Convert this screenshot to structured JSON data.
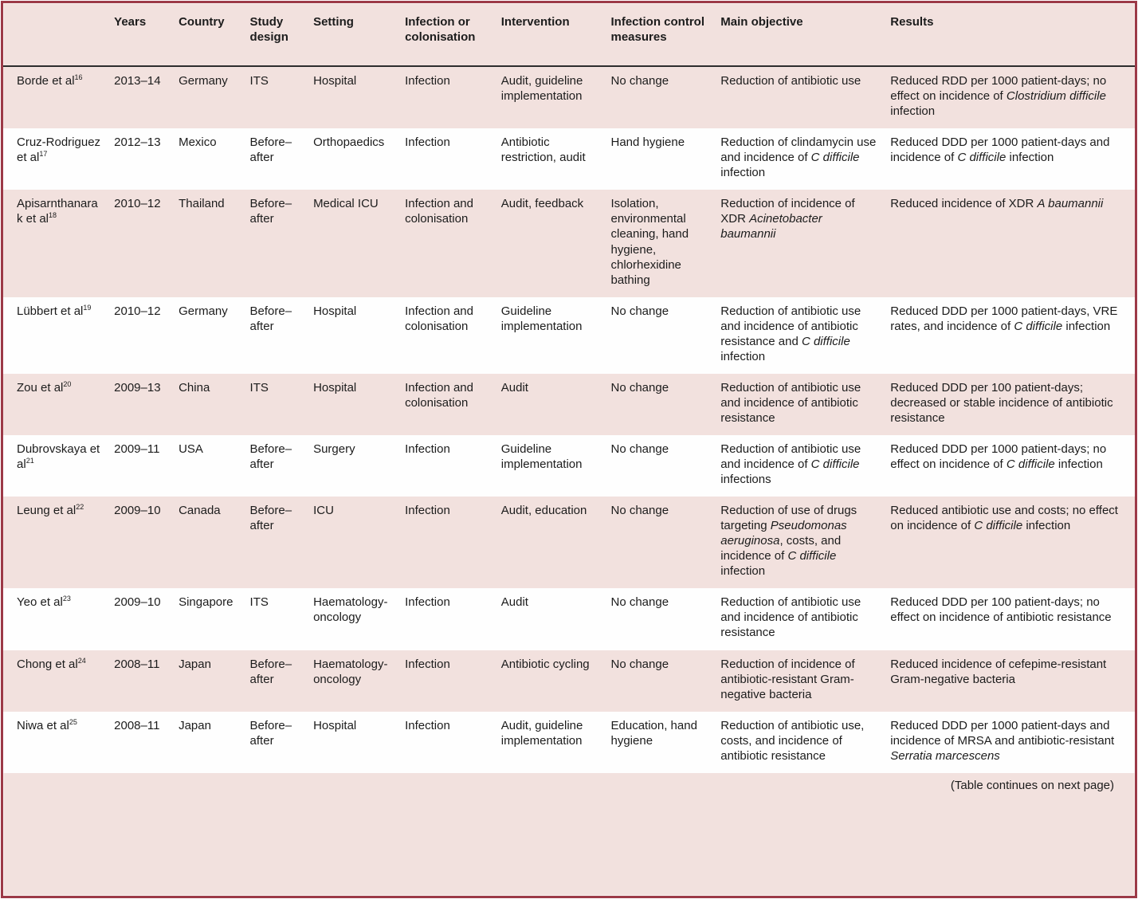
{
  "colors": {
    "pink_background": "#f2e1de",
    "maroon_border": "#9c3947",
    "header_rule": "#2d2d2d",
    "text": "#1c1c1c",
    "white_row": "#fefefe"
  },
  "table": {
    "headers": [
      "",
      "Years",
      "Country",
      "Study design",
      "Setting",
      "Infection or colonisation",
      "Intervention",
      "Infection control measures",
      "Main objective",
      "Results"
    ],
    "column_keys": [
      "study",
      "years",
      "country",
      "design",
      "setting",
      "infection",
      "intervention",
      "control",
      "objective",
      "results"
    ],
    "footer_note": "(Table continues on next page)",
    "rows": [
      {
        "shade": "pink",
        "cells": {
          "study": [
            {
              "t": "Borde et al"
            },
            {
              "t": "16",
              "sup": true
            }
          ],
          "years": "2013–14",
          "country": "Germany",
          "design": "ITS",
          "setting": "Hospital",
          "infection": "Infection",
          "intervention": "Audit, guideline implementation",
          "control": "No change",
          "objective": "Reduction of antibiotic use",
          "results": [
            {
              "t": "Reduced RDD per 1000 patient-days; no effect on incidence of "
            },
            {
              "t": "Clostridium difficile",
              "i": true
            },
            {
              "t": " infection"
            }
          ]
        }
      },
      {
        "shade": "white",
        "cells": {
          "study": [
            {
              "t": "Cruz-Rodriguez et al"
            },
            {
              "t": "17",
              "sup": true
            }
          ],
          "years": "2012–13",
          "country": "Mexico",
          "design": "Before–after",
          "setting": "Orthopaedics",
          "infection": "Infection",
          "intervention": "Antibiotic restriction, audit",
          "control": "Hand hygiene",
          "objective": [
            {
              "t": "Reduction of clindamycin use and incidence of "
            },
            {
              "t": "C difficile",
              "i": true
            },
            {
              "t": " infection"
            }
          ],
          "results": [
            {
              "t": "Reduced DDD per 1000 patient-days and incidence of "
            },
            {
              "t": "C difficile",
              "i": true
            },
            {
              "t": " infection"
            }
          ]
        }
      },
      {
        "shade": "pink",
        "cells": {
          "study": [
            {
              "t": "Apisarnthanarak et al"
            },
            {
              "t": "18",
              "sup": true
            }
          ],
          "years": "2010–12",
          "country": "Thailand",
          "design": "Before–after",
          "setting": "Medical ICU",
          "infection": "Infection and colonisation",
          "intervention": "Audit, feedback",
          "control": "Isolation, environmental cleaning, hand hygiene, chlorhexidine bathing",
          "objective": [
            {
              "t": "Reduction of incidence of XDR "
            },
            {
              "t": "Acinetobacter baumannii",
              "i": true
            }
          ],
          "results": [
            {
              "t": "Reduced incidence of XDR "
            },
            {
              "t": "A baumannii",
              "i": true
            }
          ]
        }
      },
      {
        "shade": "white",
        "cells": {
          "study": [
            {
              "t": "Lübbert et al"
            },
            {
              "t": "19",
              "sup": true
            }
          ],
          "years": "2010–12",
          "country": "Germany",
          "design": "Before–after",
          "setting": "Hospital",
          "infection": "Infection and colonisation",
          "intervention": "Guideline implementation",
          "control": "No change",
          "objective": [
            {
              "t": "Reduction of antibiotic use and incidence of antibiotic resistance and "
            },
            {
              "t": "C difficile",
              "i": true
            },
            {
              "t": " infection"
            }
          ],
          "results": [
            {
              "t": "Reduced DDD per 1000 patient-days, VRE rates, and incidence of "
            },
            {
              "t": "C difficile",
              "i": true
            },
            {
              "t": " infection"
            }
          ]
        }
      },
      {
        "shade": "pink",
        "cells": {
          "study": [
            {
              "t": "Zou et al"
            },
            {
              "t": "20",
              "sup": true
            }
          ],
          "years": "2009–13",
          "country": "China",
          "design": "ITS",
          "setting": "Hospital",
          "infection": "Infection and colonisation",
          "intervention": "Audit",
          "control": "No change",
          "objective": "Reduction of antibiotic use and incidence of antibiotic resistance",
          "results": "Reduced DDD per 100 patient-days; decreased or stable incidence of antibiotic resistance"
        }
      },
      {
        "shade": "white",
        "cells": {
          "study": [
            {
              "t": "Dubrovskaya et al"
            },
            {
              "t": "21",
              "sup": true
            }
          ],
          "years": "2009–11",
          "country": "USA",
          "design": "Before–after",
          "setting": "Surgery",
          "infection": "Infection",
          "intervention": "Guideline implementation",
          "control": "No change",
          "objective": [
            {
              "t": "Reduction of antibiotic use and incidence of "
            },
            {
              "t": "C difficile",
              "i": true
            },
            {
              "t": " infections"
            }
          ],
          "results": [
            {
              "t": "Reduced DDD per 1000 patient-days; no effect on incidence of "
            },
            {
              "t": "C difficile",
              "i": true
            },
            {
              "t": " infection"
            }
          ]
        }
      },
      {
        "shade": "pink",
        "cells": {
          "study": [
            {
              "t": "Leung et al"
            },
            {
              "t": "22",
              "sup": true
            }
          ],
          "years": "2009–10",
          "country": "Canada",
          "design": "Before–after",
          "setting": "ICU",
          "infection": "Infection",
          "intervention": "Audit, education",
          "control": "No change",
          "objective": [
            {
              "t": "Reduction of use of drugs targeting "
            },
            {
              "t": "Pseudomonas aeruginosa",
              "i": true
            },
            {
              "t": ", costs, and incidence of "
            },
            {
              "t": "C difficile",
              "i": true
            },
            {
              "t": " infection"
            }
          ],
          "results": [
            {
              "t": "Reduced antibiotic use and costs; no effect on incidence of "
            },
            {
              "t": "C difficile",
              "i": true
            },
            {
              "t": " infection"
            }
          ]
        }
      },
      {
        "shade": "white",
        "cells": {
          "study": [
            {
              "t": "Yeo et al"
            },
            {
              "t": "23",
              "sup": true
            }
          ],
          "years": "2009–10",
          "country": "Singapore",
          "design": "ITS",
          "setting": "Haematology-oncology",
          "infection": "Infection",
          "intervention": "Audit",
          "control": "No change",
          "objective": "Reduction of antibiotic use and incidence of antibiotic resistance",
          "results": "Reduced DDD per 100 patient-days; no effect on incidence of antibiotic resistance"
        }
      },
      {
        "shade": "pink",
        "cells": {
          "study": [
            {
              "t": "Chong et al"
            },
            {
              "t": "24",
              "sup": true
            }
          ],
          "years": "2008–11",
          "country": "Japan",
          "design": "Before–after",
          "setting": "Haematology-oncology",
          "infection": "Infection",
          "intervention": "Antibiotic cycling",
          "control": "No change",
          "objective": "Reduction of incidence of antibiotic-resistant Gram-negative bacteria",
          "results": "Reduced incidence of cefepime-resistant Gram-negative bacteria"
        }
      },
      {
        "shade": "white",
        "cells": {
          "study": [
            {
              "t": "Niwa et al"
            },
            {
              "t": "25",
              "sup": true
            }
          ],
          "years": "2008–11",
          "country": "Japan",
          "design": "Before–after",
          "setting": "Hospital",
          "infection": "Infection",
          "intervention": "Audit, guideline implementation",
          "control": "Education, hand hygiene",
          "objective": "Reduction of antibiotic use, costs, and incidence of antibiotic resistance",
          "results": [
            {
              "t": "Reduced DDD per 1000 patient-days and incidence of MRSA and antibiotic-resistant "
            },
            {
              "t": "Serratia marcescens",
              "i": true
            }
          ]
        }
      }
    ]
  }
}
